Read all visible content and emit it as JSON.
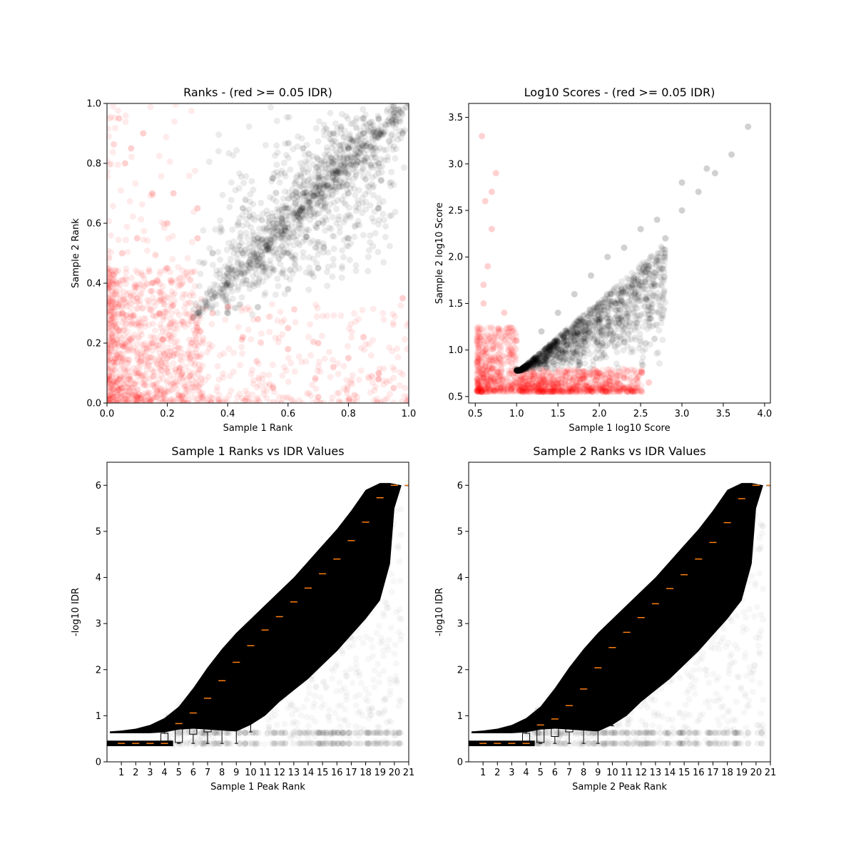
{
  "chart_data": [
    {
      "id": "ranks",
      "type": "scatter",
      "title": "Ranks - (red >= 0.05 IDR)",
      "xlabel": "Sample 1 Rank",
      "ylabel": "Sample 2 Rank",
      "xlim": [
        0,
        1
      ],
      "ylim": [
        0,
        1
      ],
      "xticks": [
        0.0,
        0.2,
        0.4,
        0.6,
        0.8,
        1.0
      ],
      "yticks": [
        0.0,
        0.2,
        0.4,
        0.6,
        0.8,
        1.0
      ],
      "xtick_labels": [
        "0.0",
        "0.2",
        "0.4",
        "0.6",
        "0.8",
        "1.0"
      ],
      "ytick_labels": [
        "0.0",
        "0.2",
        "0.4",
        "0.6",
        "0.8",
        "1.0"
      ],
      "grid": false,
      "series": [
        {
          "color": "#ff0000",
          "x": [
            0.05,
            0.1,
            0.15,
            0.2,
            0.25,
            0.28,
            0.3,
            0.35,
            0.4,
            0.5,
            0.6,
            0.7,
            0.8,
            0.9,
            0.95,
            0.05,
            0.1,
            0.15,
            0.2,
            0.05,
            0.1,
            0.2,
            0.3,
            0.06,
            0.12,
            0.04,
            0.08,
            0.15,
            0.3,
            0.45,
            0.6,
            0.75,
            0.9,
            0.55,
            0.7,
            0.85,
            0.98,
            0.02,
            0.1,
            0.22
          ],
          "y": [
            0.05,
            0.1,
            0.2,
            0.15,
            0.1,
            0.2,
            0.25,
            0.3,
            0.32,
            0.28,
            0.25,
            0.2,
            0.15,
            0.1,
            0.05,
            0.3,
            0.35,
            0.4,
            0.45,
            0.5,
            0.55,
            0.6,
            0.55,
            0.8,
            0.9,
            0.95,
            0.85,
            0.7,
            0.65,
            0.22,
            0.18,
            0.12,
            0.08,
            0.05,
            0.02,
            0.22,
            0.35,
            0.02,
            0.02,
            0.7
          ]
        },
        {
          "color": "#000000",
          "x": [
            0.3,
            0.35,
            0.4,
            0.45,
            0.5,
            0.55,
            0.6,
            0.65,
            0.7,
            0.75,
            0.8,
            0.85,
            0.9,
            0.95,
            1.0,
            0.4,
            0.5,
            0.6,
            0.7,
            0.8,
            0.9,
            0.35,
            0.45,
            0.55,
            0.65,
            0.75,
            0.85,
            0.95,
            0.6,
            0.7,
            0.8,
            0.9,
            0.98
          ],
          "y": [
            0.3,
            0.35,
            0.45,
            0.5,
            0.55,
            0.6,
            0.65,
            0.7,
            0.75,
            0.8,
            0.85,
            0.9,
            0.95,
            0.97,
            1.0,
            0.3,
            0.32,
            0.38,
            0.45,
            0.55,
            0.65,
            0.5,
            0.65,
            0.75,
            0.85,
            0.9,
            0.95,
            0.99,
            0.5,
            0.6,
            0.7,
            0.8,
            0.9
          ]
        }
      ]
    },
    {
      "id": "scores",
      "type": "scatter",
      "title": "Log10 Scores - (red >= 0.05 IDR)",
      "xlabel": "Sample 1 log10 Score",
      "ylabel": "Sample 2 log10 Score",
      "xlim": [
        0.42,
        4.07
      ],
      "ylim": [
        0.43,
        3.65
      ],
      "xticks": [
        0.5,
        1.0,
        1.5,
        2.0,
        2.5,
        3.0,
        3.5,
        4.0
      ],
      "yticks": [
        0.5,
        1.0,
        1.5,
        2.0,
        2.5,
        3.0,
        3.5
      ],
      "xtick_labels": [
        "0.5",
        "1.0",
        "1.5",
        "2.0",
        "2.5",
        "3.0",
        "3.5",
        "4.0"
      ],
      "ytick_labels": [
        "0.5",
        "1.0",
        "1.5",
        "2.0",
        "2.5",
        "3.0",
        "3.5"
      ],
      "grid": false,
      "series": [
        {
          "color": "#ff0000",
          "x": [
            0.55,
            0.6,
            0.7,
            0.8,
            0.9,
            1.0,
            1.1,
            1.3,
            1.5,
            1.8,
            2.0,
            2.3,
            2.6,
            0.6,
            0.65,
            0.7,
            0.58,
            0.62,
            0.75,
            0.85,
            0.95,
            0.6,
            0.7
          ],
          "y": [
            0.6,
            0.7,
            0.8,
            0.9,
            1.0,
            1.1,
            0.7,
            0.65,
            0.68,
            0.7,
            0.75,
            0.7,
            0.65,
            1.5,
            1.9,
            2.3,
            3.3,
            2.6,
            2.9,
            1.4,
            1.2,
            1.7,
            2.7
          ]
        },
        {
          "color": "#000000",
          "x": [
            1.0,
            1.2,
            1.4,
            1.6,
            1.8,
            2.0,
            2.2,
            2.4,
            2.6,
            2.8,
            3.0,
            3.2,
            3.4,
            3.6,
            3.8,
            1.3,
            1.5,
            1.7,
            1.9,
            2.1,
            2.3,
            2.5,
            2.7,
            3.0,
            3.3
          ],
          "y": [
            0.8,
            0.9,
            1.0,
            1.1,
            1.2,
            1.3,
            1.5,
            1.7,
            1.9,
            2.2,
            2.5,
            2.7,
            2.9,
            3.1,
            3.4,
            1.2,
            1.4,
            1.6,
            1.8,
            2.0,
            2.1,
            2.3,
            2.4,
            2.8,
            2.95
          ]
        }
      ]
    },
    {
      "id": "sample1-idr",
      "type": "box",
      "title": "Sample 1 Ranks vs IDR Values",
      "xlabel": "Sample 1 Peak Rank",
      "ylabel": "-log10 IDR",
      "xlim": [
        0,
        21
      ],
      "ylim": [
        0,
        6.5
      ],
      "xticks": [
        1,
        2,
        3,
        4,
        5,
        6,
        7,
        8,
        9,
        10,
        11,
        12,
        13,
        14,
        15,
        16,
        17,
        18,
        19,
        20,
        21
      ],
      "yticks": [
        0,
        1,
        2,
        3,
        4,
        5,
        6
      ],
      "xtick_labels": [
        "1",
        "2",
        "3",
        "4",
        "5",
        "6",
        "7",
        "8",
        "9",
        "10",
        "11",
        "12",
        "13",
        "14",
        "15",
        "16",
        "17",
        "18",
        "19",
        "20",
        "21"
      ],
      "ytick_labels": [
        "0",
        "1",
        "2",
        "3",
        "4",
        "5",
        "6"
      ],
      "grid": false,
      "scatter_color": "#000000",
      "band_x": [
        0.2,
        1,
        2,
        3,
        4,
        5,
        6,
        7,
        8,
        9,
        10,
        11,
        12,
        13,
        14,
        15,
        16,
        17,
        18,
        19,
        19.7,
        20,
        20.5
      ],
      "band_upper": [
        0.66,
        0.68,
        0.72,
        0.8,
        0.95,
        1.2,
        1.6,
        2.05,
        2.45,
        2.8,
        3.1,
        3.4,
        3.7,
        4.0,
        4.35,
        4.7,
        5.05,
        5.45,
        5.9,
        6.05,
        6.05,
        6.03,
        6.0
      ],
      "band_lower": [
        0.62,
        0.62,
        0.62,
        0.62,
        0.64,
        0.7,
        0.72,
        0.7,
        0.68,
        0.66,
        0.8,
        1.0,
        1.3,
        1.55,
        1.8,
        2.1,
        2.4,
        2.75,
        3.1,
        3.5,
        4.3,
        5.5,
        6.0
      ],
      "boxes": [
        {
          "pos": 1,
          "whislo": 0.4,
          "q1": 0.4,
          "med": 0.4,
          "q3": 0.4,
          "whishi": 0.4
        },
        {
          "pos": 2,
          "whislo": 0.4,
          "q1": 0.4,
          "med": 0.4,
          "q3": 0.4,
          "whishi": 0.4
        },
        {
          "pos": 3,
          "whislo": 0.4,
          "q1": 0.4,
          "med": 0.4,
          "q3": 0.4,
          "whishi": 0.4
        },
        {
          "pos": 4,
          "whislo": 0.4,
          "q1": 0.4,
          "med": 0.4,
          "q3": 0.62,
          "whishi": 0.66
        },
        {
          "pos": 5,
          "whislo": 0.4,
          "q1": 0.42,
          "med": 0.83,
          "q3": 0.88,
          "whishi": 0.9
        },
        {
          "pos": 6,
          "whislo": 0.4,
          "q1": 0.6,
          "med": 1.06,
          "q3": 1.1,
          "whishi": 1.1
        },
        {
          "pos": 7,
          "whislo": 0.4,
          "q1": 0.65,
          "med": 1.38,
          "q3": 1.42,
          "whishi": 1.42
        },
        {
          "pos": 8,
          "whislo": 0.4,
          "q1": 0.92,
          "med": 1.76,
          "q3": 1.82,
          "whishi": 1.82
        },
        {
          "pos": 9,
          "whislo": 0.4,
          "q1": 1.32,
          "med": 2.16,
          "q3": 2.2,
          "whishi": 2.2
        },
        {
          "pos": 10,
          "whislo": 0.65,
          "q1": 1.86,
          "med": 2.52,
          "q3": 2.55,
          "whishi": 2.55
        },
        {
          "pos": 11,
          "whislo": 1.5,
          "q1": 2.4,
          "med": 2.86,
          "q3": 2.9,
          "whishi": 2.9
        },
        {
          "pos": 12,
          "whislo": 1.84,
          "q1": 2.72,
          "med": 3.15,
          "q3": 3.2,
          "whishi": 3.2
        },
        {
          "pos": 13,
          "whislo": 2.38,
          "q1": 3.12,
          "med": 3.47,
          "q3": 3.5,
          "whishi": 3.5
        },
        {
          "pos": 14,
          "whislo": 2.78,
          "q1": 3.5,
          "med": 3.77,
          "q3": 3.8,
          "whishi": 3.8
        },
        {
          "pos": 15,
          "whislo": 3.1,
          "q1": 3.84,
          "med": 4.08,
          "q3": 4.1,
          "whishi": 4.1
        },
        {
          "pos": 16,
          "whislo": 3.33,
          "q1": 4.12,
          "med": 4.4,
          "q3": 4.45,
          "whishi": 4.45
        },
        {
          "pos": 17,
          "whislo": 3.65,
          "q1": 4.4,
          "med": 4.8,
          "q3": 4.83,
          "whishi": 4.83
        },
        {
          "pos": 18,
          "whislo": 3.93,
          "q1": 4.82,
          "med": 5.2,
          "q3": 5.25,
          "whishi": 5.25
        },
        {
          "pos": 19,
          "whislo": 4.52,
          "q1": 5.35,
          "med": 5.73,
          "q3": 5.78,
          "whishi": 5.78
        },
        {
          "pos": 20,
          "whislo": 6.0,
          "q1": 6.0,
          "med": 6.0,
          "q3": 6.0,
          "whishi": 6.0
        },
        {
          "pos": 21,
          "whislo": 6.0,
          "q1": 6.0,
          "med": 6.0,
          "q3": 6.0,
          "whishi": 6.0
        }
      ]
    },
    {
      "id": "sample2-idr",
      "type": "box",
      "title": "Sample 2 Ranks vs IDR Values",
      "xlabel": "Sample 2 Peak Rank",
      "ylabel": "-log10 IDR",
      "xlim": [
        0,
        21
      ],
      "ylim": [
        0,
        6.5
      ],
      "xticks": [
        1,
        2,
        3,
        4,
        5,
        6,
        7,
        8,
        9,
        10,
        11,
        12,
        13,
        14,
        15,
        16,
        17,
        18,
        19,
        20,
        21
      ],
      "yticks": [
        0,
        1,
        2,
        3,
        4,
        5,
        6
      ],
      "xtick_labels": [
        "1",
        "2",
        "3",
        "4",
        "5",
        "6",
        "7",
        "8",
        "9",
        "10",
        "11",
        "12",
        "13",
        "14",
        "15",
        "16",
        "17",
        "18",
        "19",
        "20",
        "21"
      ],
      "ytick_labels": [
        "0",
        "1",
        "2",
        "3",
        "4",
        "5",
        "6"
      ],
      "grid": false,
      "scatter_color": "#000000",
      "band_x": [
        0.2,
        1,
        2,
        3,
        4,
        5,
        6,
        7,
        8,
        9,
        10,
        11,
        12,
        13,
        14,
        15,
        16,
        17,
        18,
        19,
        19.7,
        20,
        20.5
      ],
      "band_upper": [
        0.66,
        0.68,
        0.72,
        0.8,
        0.95,
        1.2,
        1.6,
        2.05,
        2.45,
        2.8,
        3.1,
        3.4,
        3.7,
        4.0,
        4.35,
        4.7,
        5.05,
        5.45,
        5.9,
        6.05,
        6.05,
        6.03,
        6.0
      ],
      "band_lower": [
        0.62,
        0.62,
        0.62,
        0.62,
        0.64,
        0.7,
        0.72,
        0.7,
        0.68,
        0.66,
        0.8,
        1.0,
        1.3,
        1.55,
        1.8,
        2.1,
        2.4,
        2.75,
        3.1,
        3.5,
        4.3,
        5.5,
        6.0
      ],
      "boxes": [
        {
          "pos": 1,
          "whislo": 0.4,
          "q1": 0.4,
          "med": 0.4,
          "q3": 0.4,
          "whishi": 0.4
        },
        {
          "pos": 2,
          "whislo": 0.4,
          "q1": 0.4,
          "med": 0.4,
          "q3": 0.4,
          "whishi": 0.4
        },
        {
          "pos": 3,
          "whislo": 0.4,
          "q1": 0.4,
          "med": 0.4,
          "q3": 0.4,
          "whishi": 0.4
        },
        {
          "pos": 4,
          "whislo": 0.4,
          "q1": 0.4,
          "med": 0.4,
          "q3": 0.62,
          "whishi": 0.66
        },
        {
          "pos": 5,
          "whislo": 0.4,
          "q1": 0.42,
          "med": 0.8,
          "q3": 0.86,
          "whishi": 0.88
        },
        {
          "pos": 6,
          "whislo": 0.4,
          "q1": 0.55,
          "med": 0.93,
          "q3": 1.0,
          "whishi": 1.02
        },
        {
          "pos": 7,
          "whislo": 0.4,
          "q1": 0.65,
          "med": 1.22,
          "q3": 1.3,
          "whishi": 1.52
        },
        {
          "pos": 8,
          "whislo": 0.4,
          "q1": 0.85,
          "med": 1.58,
          "q3": 1.7,
          "whishi": 1.75
        },
        {
          "pos": 9,
          "whislo": 0.4,
          "q1": 1.28,
          "med": 2.04,
          "q3": 2.12,
          "whishi": 2.15
        },
        {
          "pos": 10,
          "whislo": 0.78,
          "q1": 1.9,
          "med": 2.48,
          "q3": 2.55,
          "whishi": 2.58
        },
        {
          "pos": 11,
          "whislo": 1.4,
          "q1": 2.38,
          "med": 2.81,
          "q3": 2.88,
          "whishi": 2.9
        },
        {
          "pos": 12,
          "whislo": 1.9,
          "q1": 2.75,
          "med": 3.13,
          "q3": 3.18,
          "whishi": 3.2
        },
        {
          "pos": 13,
          "whislo": 2.35,
          "q1": 3.1,
          "med": 3.43,
          "q3": 3.47,
          "whishi": 3.5
        },
        {
          "pos": 14,
          "whislo": 2.75,
          "q1": 3.5,
          "med": 3.76,
          "q3": 3.8,
          "whishi": 3.82
        },
        {
          "pos": 15,
          "whislo": 3.06,
          "q1": 3.84,
          "med": 4.06,
          "q3": 4.1,
          "whishi": 4.12
        },
        {
          "pos": 16,
          "whislo": 3.33,
          "q1": 4.12,
          "med": 4.4,
          "q3": 4.45,
          "whishi": 4.46
        },
        {
          "pos": 17,
          "whislo": 3.52,
          "q1": 4.4,
          "med": 4.76,
          "q3": 4.8,
          "whishi": 4.82
        },
        {
          "pos": 18,
          "whislo": 3.95,
          "q1": 4.82,
          "med": 5.19,
          "q3": 5.23,
          "whishi": 5.25
        },
        {
          "pos": 19,
          "whislo": 4.47,
          "q1": 5.33,
          "med": 5.71,
          "q3": 5.76,
          "whishi": 5.78
        },
        {
          "pos": 20,
          "whislo": 6.0,
          "q1": 6.0,
          "med": 6.0,
          "q3": 6.0,
          "whishi": 6.0
        },
        {
          "pos": 21,
          "whislo": 6.0,
          "q1": 6.0,
          "med": 6.0,
          "q3": 6.0,
          "whishi": 6.0
        }
      ]
    }
  ]
}
